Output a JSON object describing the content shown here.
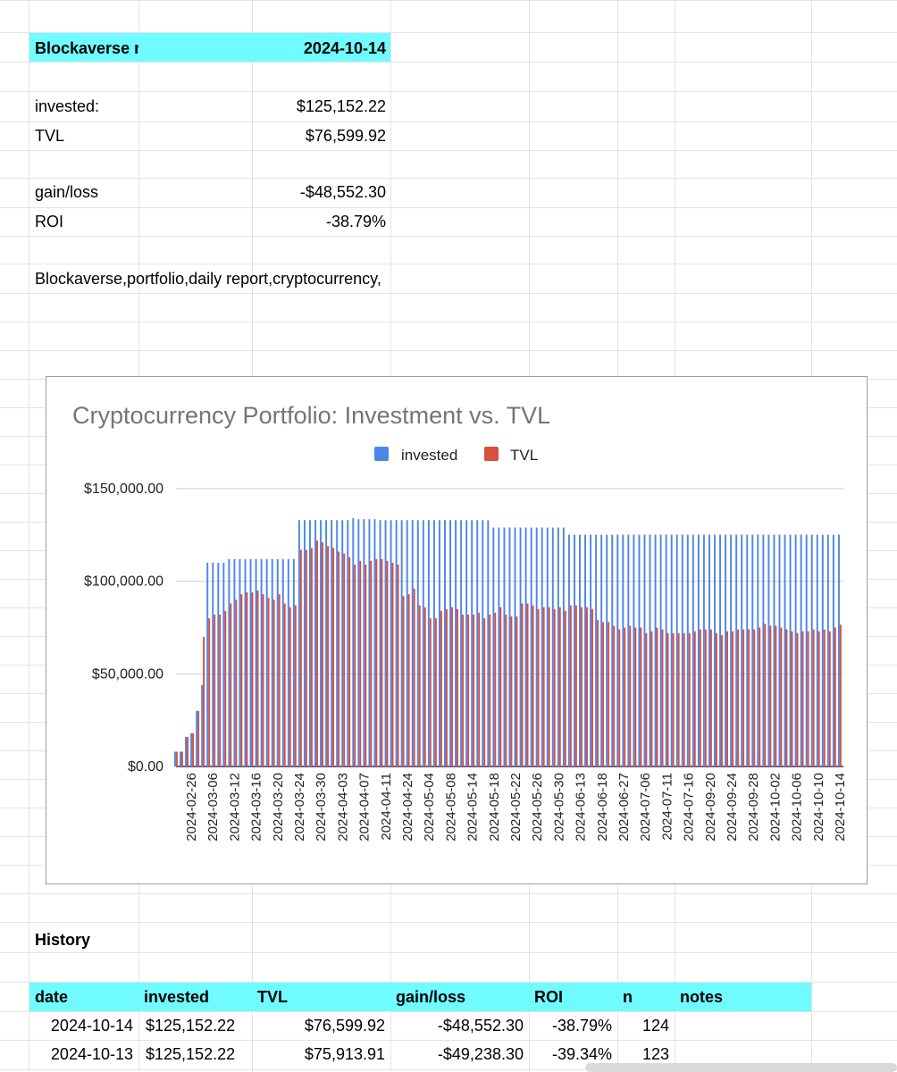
{
  "report": {
    "title": "Blockaverse report,",
    "date": "2024-10-14",
    "invested_label": "invested:",
    "invested_value": "$125,152.22",
    "tvl_label": "TVL",
    "tvl_value": "$76,599.92",
    "gainloss_label": "gain/loss",
    "gainloss_value": "-$48,552.30",
    "roi_label": "ROI",
    "roi_value": "-38.79%",
    "tags": "Blockaverse,portfolio,daily report,cryptocurrency,"
  },
  "colors": {
    "header_highlight": "#6ffbff",
    "invested_series": "#4e86e8",
    "tvl_series": "#d9503f"
  },
  "chart_data": {
    "type": "bar",
    "title": "Cryptocurrency Portfolio: Investment vs. TVL",
    "xlabel": "",
    "ylabel": "",
    "ylim": [
      0,
      150000
    ],
    "yticks": [
      "$0.00",
      "$50,000.00",
      "$100,000.00",
      "$150,000.00"
    ],
    "ytick_values": [
      0,
      50000,
      100000,
      150000
    ],
    "legend_position": "top-center",
    "grid": true,
    "x_tick_labels": [
      "2024-02-26",
      "2024-03-06",
      "2024-03-12",
      "2024-03-16",
      "2024-03-20",
      "2024-03-24",
      "2024-03-30",
      "2024-04-03",
      "2024-04-07",
      "2024-04-11",
      "2024-04-24",
      "2024-05-04",
      "2024-05-08",
      "2024-05-14",
      "2024-05-18",
      "2024-05-22",
      "2024-05-26",
      "2024-05-30",
      "2024-06-13",
      "2024-06-18",
      "2024-06-27",
      "2024-07-06",
      "2024-07-11",
      "2024-07-16",
      "2024-09-20",
      "2024-09-24",
      "2024-09-28",
      "2024-10-02",
      "2024-10-06",
      "2024-10-10",
      "2024-10-14"
    ],
    "series": [
      {
        "name": "invested",
        "values": [
          8000,
          8000,
          16000,
          18000,
          30000,
          44000,
          110000,
          110000,
          110000,
          110000,
          112000,
          112000,
          112000,
          112000,
          112000,
          112000,
          112000,
          112000,
          112000,
          112000,
          112000,
          112000,
          112000,
          133000,
          133000,
          133000,
          133000,
          133000,
          133000,
          133000,
          133000,
          133000,
          133000,
          134000,
          133500,
          133500,
          133500,
          133500,
          133000,
          133000,
          133000,
          133000,
          133000,
          133000,
          133000,
          133000,
          133000,
          133000,
          133000,
          133000,
          133000,
          133000,
          133000,
          133000,
          133000,
          133000,
          133000,
          133000,
          133000,
          129000,
          129000,
          129000,
          129000,
          129000,
          129000,
          129000,
          129000,
          129000,
          129000,
          129000,
          129000,
          129000,
          129000,
          125152,
          125152,
          125152,
          125152,
          125152,
          125152,
          125152,
          125152,
          125152,
          125152,
          125152,
          125152,
          125152,
          125152,
          125152,
          125152,
          125152,
          125152,
          125152,
          125152,
          125152,
          125152,
          125152,
          125152,
          125152,
          125152,
          125152,
          125152,
          125152,
          125152,
          125152,
          125152,
          125152,
          125152,
          125152,
          125152,
          125152,
          125152,
          125152,
          125152,
          125152,
          125152,
          125152,
          125152,
          125152,
          125152,
          125152,
          125152,
          125152,
          125152,
          125152
        ]
      },
      {
        "name": "TVL",
        "values": [
          8000,
          8000,
          16000,
          18000,
          30000,
          70000,
          80000,
          82000,
          82000,
          84000,
          88000,
          90000,
          93000,
          94000,
          94000,
          95000,
          93000,
          91000,
          90000,
          93000,
          88000,
          86000,
          87000,
          117000,
          117000,
          118000,
          122000,
          121000,
          119000,
          118000,
          116000,
          115000,
          113000,
          109000,
          111000,
          109000,
          111000,
          112000,
          112000,
          111000,
          110000,
          109000,
          92000,
          93000,
          96000,
          87000,
          86000,
          80000,
          80000,
          84000,
          85000,
          86000,
          85000,
          82000,
          82000,
          82000,
          83000,
          80000,
          82000,
          83000,
          86000,
          82000,
          81000,
          81000,
          88000,
          88000,
          87000,
          85000,
          86000,
          86000,
          85000,
          86000,
          84000,
          87000,
          87000,
          86000,
          86000,
          85000,
          79000,
          78000,
          78000,
          76000,
          74000,
          75000,
          76000,
          75000,
          75000,
          72000,
          73000,
          75000,
          74000,
          72000,
          72000,
          72000,
          72000,
          72000,
          73000,
          74000,
          74000,
          74000,
          72000,
          71000,
          73000,
          73000,
          74000,
          74000,
          74000,
          74000,
          75000,
          77000,
          76000,
          76000,
          75000,
          74000,
          73000,
          72000,
          73000,
          73000,
          74000,
          73000,
          74000,
          73000,
          75000,
          76600
        ]
      }
    ]
  },
  "history": {
    "title": "History",
    "columns": [
      "date",
      "invested",
      "TVL",
      "gain/loss",
      "ROI",
      "n",
      "notes"
    ],
    "rows": [
      [
        "2024-10-14",
        "$125,152.22",
        "$76,599.92",
        "-$48,552.30",
        "-38.79%",
        "124",
        ""
      ],
      [
        "2024-10-13",
        "$125,152.22",
        "$75,913.91",
        "-$49,238.30",
        "-39.34%",
        "123",
        ""
      ]
    ]
  }
}
